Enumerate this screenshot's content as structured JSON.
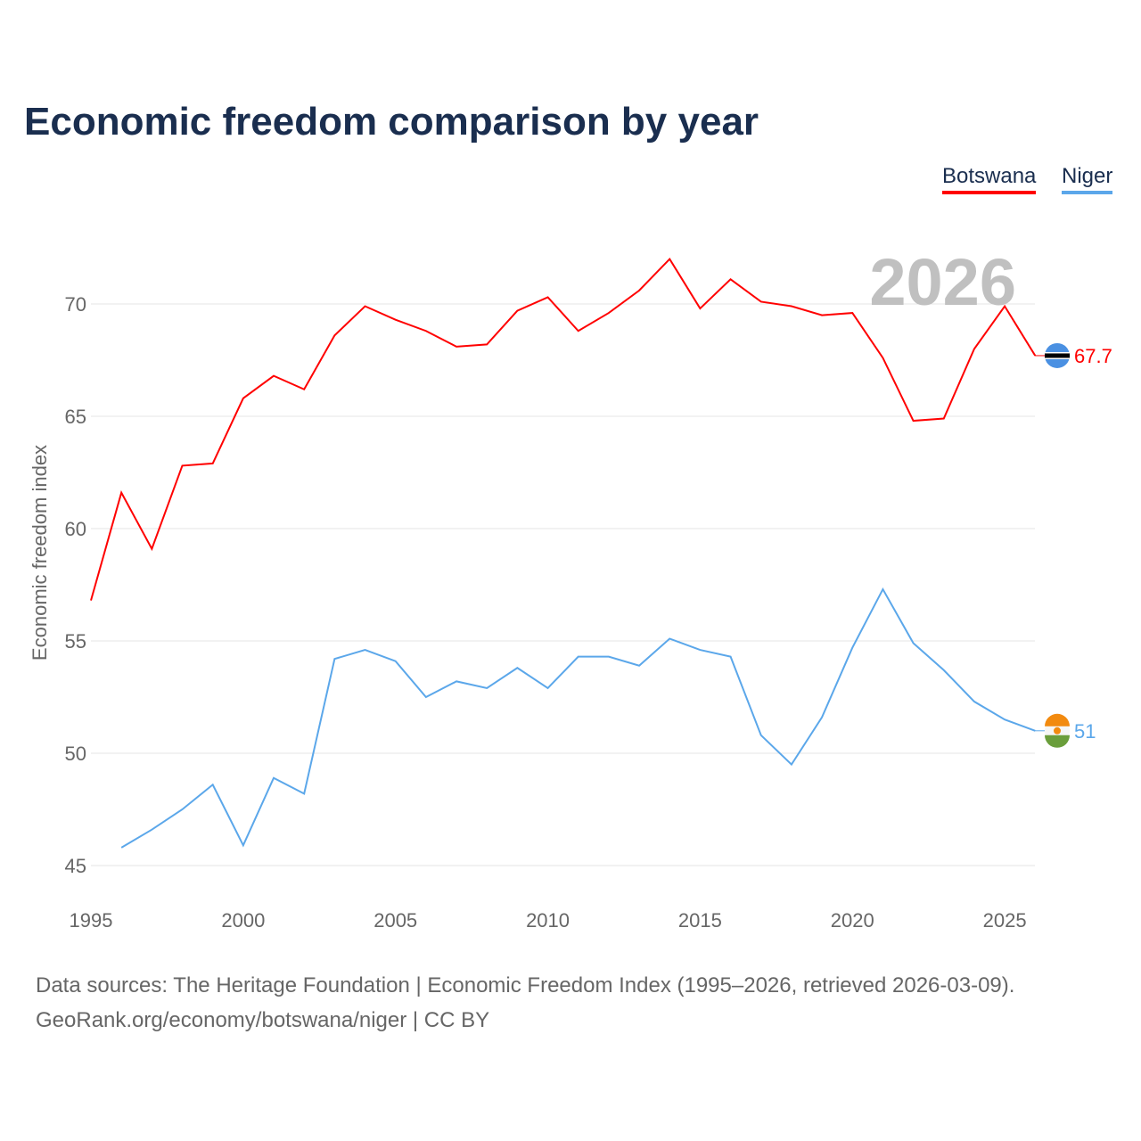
{
  "title": "Economic freedom comparison by year",
  "footer": {
    "line1": "Data sources: The Heritage Foundation | Economic Freedom Index (1995–2026, retrieved 2026-03-09).",
    "line2": "GeoRank.org/economy/botswana/niger | CC BY"
  },
  "chart_data": {
    "type": "line",
    "title": "Economic freedom comparison by year",
    "ylabel": "Economic freedom index",
    "xlim": [
      1995,
      2026
    ],
    "ylim": [
      45,
      72.5
    ],
    "xticks": [
      1995,
      2000,
      2005,
      2010,
      2015,
      2020,
      2025
    ],
    "yticks": [
      45,
      50,
      55,
      60,
      65,
      70
    ],
    "watermark_year": "2026",
    "legend_position": "top-right",
    "series": [
      {
        "name": "Botswana",
        "color": "#ff0000",
        "end_label": "67.7",
        "start_year": 1995,
        "values": [
          56.8,
          61.6,
          59.1,
          62.8,
          62.9,
          65.8,
          66.8,
          66.2,
          68.6,
          69.9,
          69.3,
          68.8,
          68.1,
          68.2,
          69.7,
          70.3,
          68.8,
          69.6,
          70.6,
          72.0,
          69.8,
          71.1,
          70.1,
          69.9,
          69.5,
          69.6,
          67.6,
          64.8,
          64.9,
          68.0,
          69.9,
          67.7
        ]
      },
      {
        "name": "Niger",
        "color": "#5ba7ea",
        "end_label": "51",
        "start_year": 1996,
        "values": [
          45.8,
          46.6,
          47.5,
          48.6,
          45.9,
          48.9,
          48.2,
          54.2,
          54.6,
          54.1,
          52.5,
          53.2,
          52.9,
          53.8,
          52.9,
          54.3,
          54.3,
          53.9,
          55.1,
          54.6,
          54.3,
          50.8,
          49.5,
          51.6,
          54.7,
          57.3,
          54.9,
          53.7,
          52.3,
          51.5,
          51.0
        ]
      }
    ]
  }
}
